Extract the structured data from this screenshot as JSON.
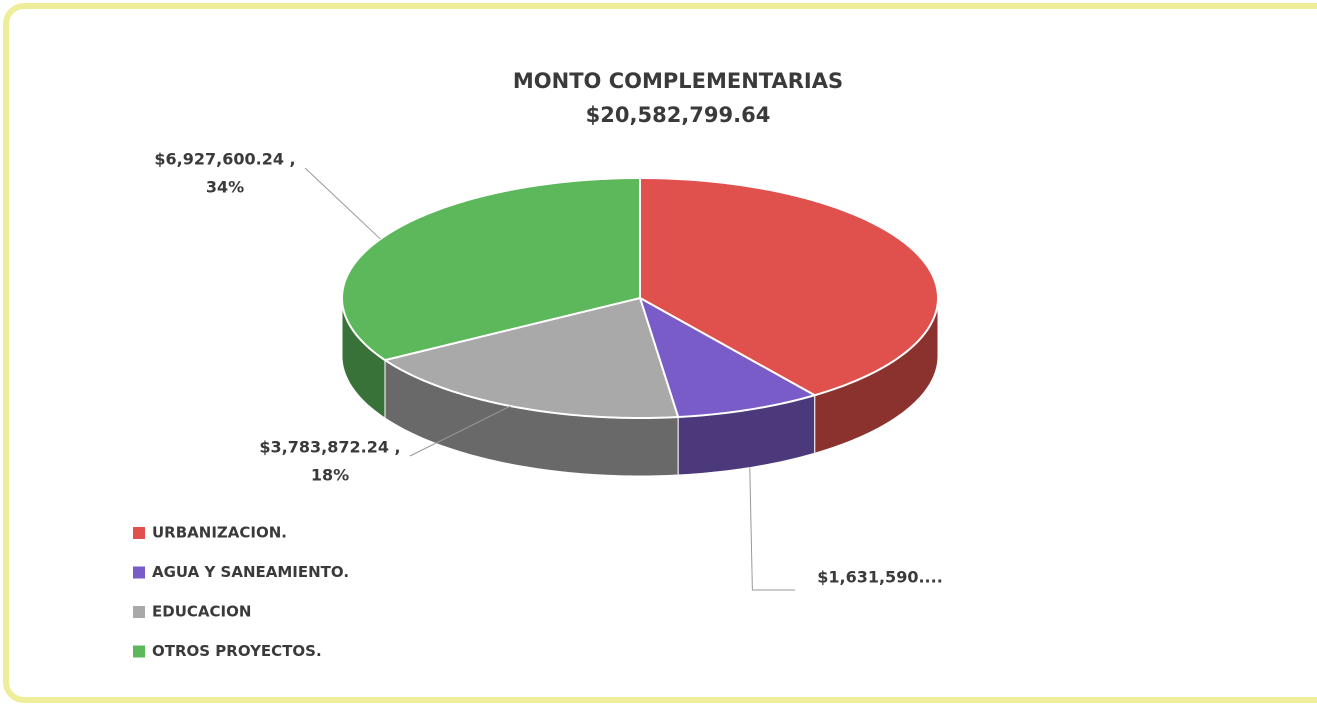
{
  "chart_data": {
    "type": "pie",
    "title": "MONTO COMPLEMENTARIAS",
    "subtitle": "$20,582,799.64",
    "categories": [
      "URBANIZACION.",
      "AGUA Y SANEAMIENTO.",
      "EDUCACION",
      "OTROS PROYECTOS."
    ],
    "values": [
      8239737,
      1631590,
      3783872.24,
      6927600.24
    ],
    "value_labels": [
      null,
      "$1,631,590....",
      "$3,783,872.24 ,",
      "$6,927,600.24 ,"
    ],
    "percent_labels": [
      null,
      null,
      "18%",
      "34%"
    ],
    "colors": [
      "#e0504c",
      "#7a5cc8",
      "#a9a9a9",
      "#5cb85a"
    ],
    "legend": "bottom-left"
  }
}
